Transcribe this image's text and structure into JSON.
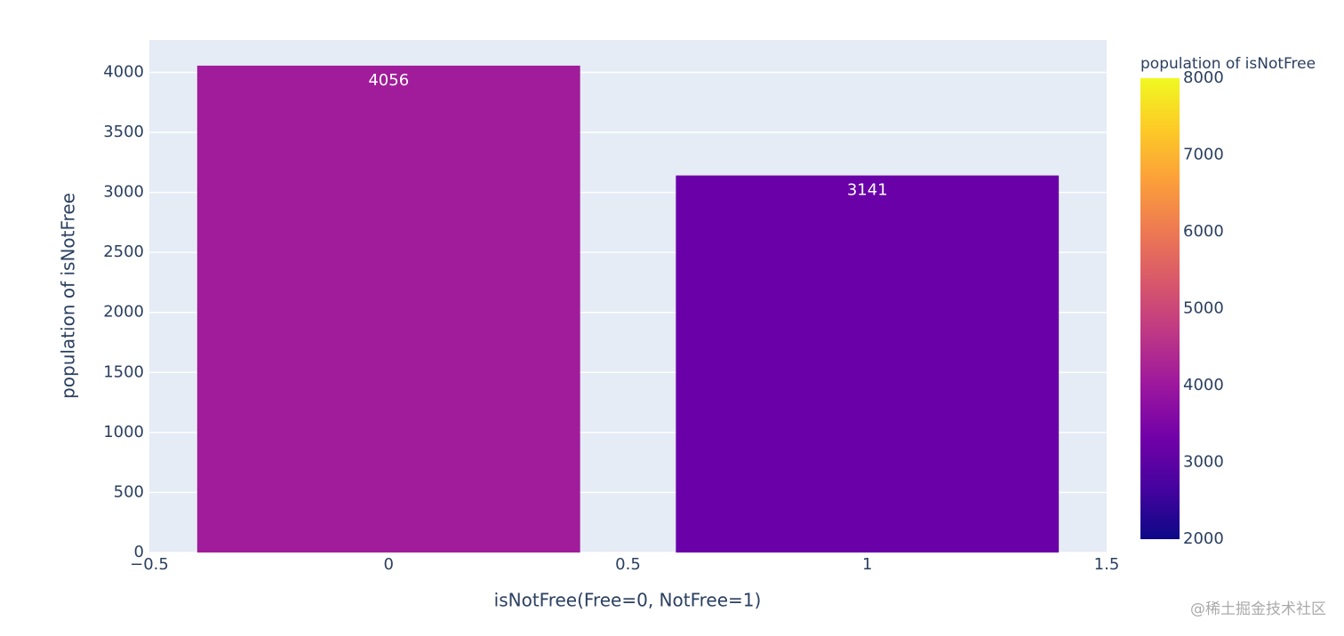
{
  "chart_data": {
    "type": "bar",
    "x_label": "isNotFree(Free=0, NotFree=1)",
    "y_label": "population of isNotFree",
    "x": [
      0,
      1
    ],
    "values": [
      4056,
      3141
    ],
    "colors": [
      "#a01c9a",
      "#6900a8"
    ],
    "xlim": [
      -0.5,
      1.5
    ],
    "xticks": [
      {
        "value": -0.5,
        "label": "−0.5"
      },
      0,
      0.5,
      1,
      1.5
    ],
    "ylim": [
      0,
      4270
    ],
    "yticks": [
      0,
      500,
      1000,
      1500,
      2000,
      2500,
      3000,
      3500,
      4000
    ],
    "grid": true,
    "colorbar": {
      "title": "population of isNotFree",
      "clim": [
        2000,
        8000
      ],
      "ticks": [
        2000,
        3000,
        4000,
        5000,
        6000,
        7000,
        8000
      ],
      "colorscale": [
        "#0d0887",
        "#46039f",
        "#7201a8",
        "#9c179e",
        "#bd3786",
        "#d8576b",
        "#ed7953",
        "#fb9f3a",
        "#fdca26",
        "#f0f921"
      ]
    },
    "watermark": "@稀土掘金技术社区"
  }
}
